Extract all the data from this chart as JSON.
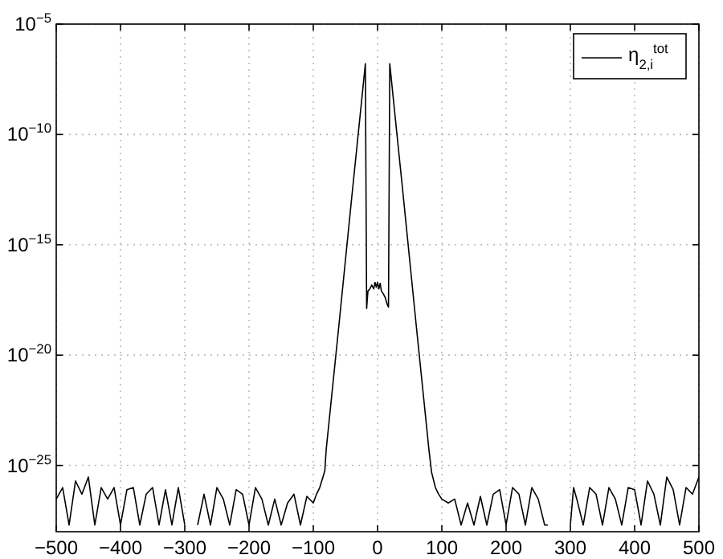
{
  "chart_data": {
    "type": "line",
    "log": "y",
    "grid": true,
    "legend": "top right",
    "line_style": "solid",
    "xlim": [
      -500,
      500
    ],
    "ylim": [
      1e-28,
      1e-05
    ],
    "xticks": [
      {
        "value": -500,
        "label": "−500"
      },
      {
        "value": -400,
        "label": "−400"
      },
      {
        "value": -300,
        "label": "−300"
      },
      {
        "value": -200,
        "label": "−200"
      },
      {
        "value": -100,
        "label": "−100"
      },
      0,
      100,
      200,
      300,
      400,
      500
    ],
    "yticks": [
      {
        "value": 1e-25,
        "label": "10$^{−25}$"
      },
      {
        "value": 1e-20,
        "label": "10$^{−20}$"
      },
      {
        "value": 1e-15,
        "label": "10$^{−15}$"
      },
      {
        "value": 1e-10,
        "label": "10$^{−10}$"
      },
      {
        "value": 1e-05,
        "label": "10$^{−5}$"
      }
    ],
    "x": [
      -500,
      -490,
      -480,
      -470,
      -460,
      -450,
      -440,
      -430,
      -420,
      -410,
      -400,
      -390,
      -380,
      -370,
      -360,
      -350,
      -340,
      -330,
      -320,
      -310,
      -300,
      -290,
      -280,
      -270,
      -260,
      -250,
      -240,
      -230,
      -220,
      -210,
      -200,
      -190,
      -180,
      -170,
      -160,
      -150,
      -140,
      -130,
      -120,
      -110,
      -100,
      -95,
      -90,
      -85,
      -82,
      -80,
      -60,
      -40,
      -25,
      -19,
      -17,
      -15,
      -12,
      -9,
      -6,
      -4,
      -2,
      0,
      2,
      4,
      6,
      9,
      12,
      15,
      17,
      19,
      25,
      40,
      60,
      80,
      84,
      90,
      95,
      100,
      110,
      120,
      130,
      140,
      150,
      160,
      170,
      180,
      190,
      200,
      210,
      220,
      230,
      240,
      250,
      260,
      265,
      280,
      300,
      305,
      310,
      320,
      330,
      340,
      350,
      360,
      370,
      380,
      390,
      400,
      410,
      420,
      430,
      440,
      450,
      460,
      470,
      480,
      490,
      500
    ],
    "series": [
      {
        "name": "η$_{2,i}$$^{tot}$",
        "color": "#000000",
        "values": [
          3e-27,
          1e-26,
          2e-28,
          2e-26,
          5e-27,
          3e-26,
          2e-28,
          1e-26,
          3e-27,
          1e-26,
          2e-28,
          8e-27,
          1e-26,
          2e-28,
          5e-27,
          1e-26,
          2e-28,
          8e-27,
          2e-28,
          1e-26,
          2e-28,
          null,
          2e-28,
          5e-27,
          2e-28,
          1e-26,
          3e-27,
          2e-28,
          8e-27,
          5e-27,
          2e-28,
          1e-26,
          3e-27,
          2e-28,
          3e-27,
          2e-28,
          2e-27,
          5e-27,
          2e-28,
          4e-27,
          2e-27,
          5e-27,
          1e-26,
          3e-26,
          6e-26,
          5e-25,
          2.5e-19,
          1.6e-13,
          3e-09,
          1.6e-07,
          1.3e-18,
          8e-18,
          1e-17,
          1.5e-17,
          1e-17,
          2e-17,
          1.2e-17,
          2e-17,
          1e-17,
          1.8e-17,
          8e-18,
          6e-18,
          4e-18,
          2e-18,
          1.5e-18,
          1.6e-07,
          3e-09,
          1.6e-13,
          2.5e-19,
          5e-25,
          5e-26,
          1e-26,
          5e-27,
          3e-27,
          2e-27,
          3e-27,
          2e-28,
          2e-27,
          2e-28,
          4e-27,
          2e-28,
          5e-27,
          8e-27,
          2e-28,
          1e-26,
          5e-27,
          2e-28,
          1e-26,
          3e-27,
          2e-28,
          2e-28,
          null,
          2e-28,
          1e-26,
          3e-27,
          2e-28,
          1e-26,
          5e-27,
          2e-28,
          1e-26,
          3e-27,
          2e-28,
          1e-26,
          8e-27,
          2e-28,
          2e-26,
          5e-27,
          2e-28,
          3e-26,
          8e-27,
          2e-28,
          1e-26,
          5e-27,
          3e-26
        ]
      }
    ]
  }
}
